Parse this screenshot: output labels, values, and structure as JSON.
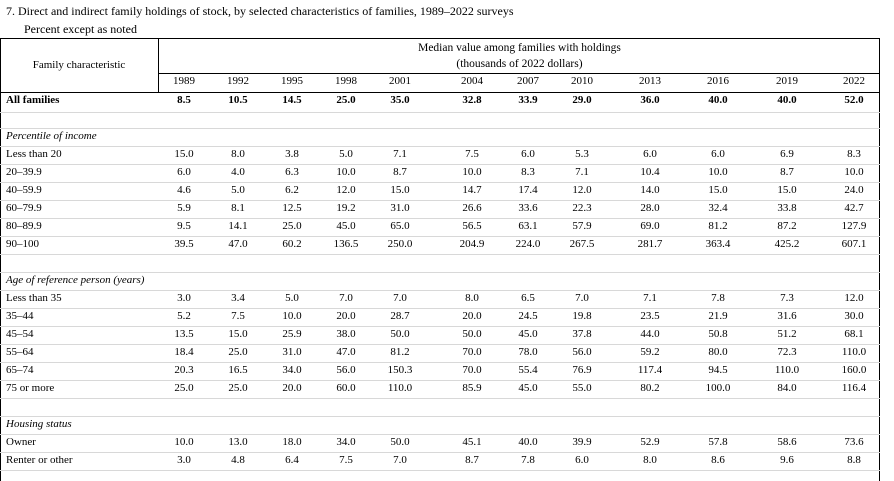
{
  "title": "7. Direct and indirect family holdings of stock, by selected characteristics of families, 1989–2022 surveys",
  "subtitle": "Percent except as noted",
  "row_header_label": "Family characteristic",
  "value_header": {
    "line1": "Median value among families with holdings",
    "line2": "(thousands of 2022 dollars)"
  },
  "years": [
    "1989",
    "1992",
    "1995",
    "1998",
    "2001",
    "2004",
    "2007",
    "2010",
    "2013",
    "2016",
    "2019",
    "2022"
  ],
  "rows": [
    {
      "type": "total",
      "label": "All families",
      "values": [
        "8.5",
        "10.5",
        "14.5",
        "25.0",
        "35.0",
        "32.8",
        "33.9",
        "29.0",
        "36.0",
        "40.0",
        "40.0",
        "52.0"
      ]
    },
    {
      "type": "section",
      "label": "Percentile of income"
    },
    {
      "type": "data",
      "label": "Less than 20",
      "values": [
        "15.0",
        "8.0",
        "3.8",
        "5.0",
        "7.1",
        "7.5",
        "6.0",
        "5.3",
        "6.0",
        "6.0",
        "6.9",
        "8.3"
      ]
    },
    {
      "type": "data",
      "label": "20–39.9",
      "values": [
        "6.0",
        "4.0",
        "6.3",
        "10.0",
        "8.7",
        "10.0",
        "8.3",
        "7.1",
        "10.4",
        "10.0",
        "8.7",
        "10.0"
      ]
    },
    {
      "type": "data",
      "label": "40–59.9",
      "values": [
        "4.6",
        "5.0",
        "6.2",
        "12.0",
        "15.0",
        "14.7",
        "17.4",
        "12.0",
        "14.0",
        "15.0",
        "15.0",
        "24.0"
      ]
    },
    {
      "type": "data",
      "label": "60–79.9",
      "values": [
        "5.9",
        "8.1",
        "12.5",
        "19.2",
        "31.0",
        "26.6",
        "33.6",
        "22.3",
        "28.0",
        "32.4",
        "33.8",
        "42.7"
      ]
    },
    {
      "type": "data",
      "label": "80–89.9",
      "values": [
        "9.5",
        "14.1",
        "25.0",
        "45.0",
        "65.0",
        "56.5",
        "63.1",
        "57.9",
        "69.0",
        "81.2",
        "87.2",
        "127.9"
      ]
    },
    {
      "type": "data",
      "label": "90–100",
      "values": [
        "39.5",
        "47.0",
        "60.2",
        "136.5",
        "250.0",
        "204.9",
        "224.0",
        "267.5",
        "281.7",
        "363.4",
        "425.2",
        "607.1"
      ]
    },
    {
      "type": "section",
      "label": "Age of reference person (years)"
    },
    {
      "type": "data",
      "label": "Less than 35",
      "values": [
        "3.0",
        "3.4",
        "5.0",
        "7.0",
        "7.0",
        "8.0",
        "6.5",
        "7.0",
        "7.1",
        "7.8",
        "7.3",
        "12.0"
      ]
    },
    {
      "type": "data",
      "label": "35–44",
      "values": [
        "5.2",
        "7.5",
        "10.0",
        "20.0",
        "28.7",
        "20.0",
        "24.5",
        "19.8",
        "23.5",
        "21.9",
        "31.6",
        "30.0"
      ]
    },
    {
      "type": "data",
      "label": "45–54",
      "values": [
        "13.5",
        "15.0",
        "25.9",
        "38.0",
        "50.0",
        "50.0",
        "45.0",
        "37.8",
        "44.0",
        "50.8",
        "51.2",
        "68.1"
      ]
    },
    {
      "type": "data",
      "label": "55–64",
      "values": [
        "18.4",
        "25.0",
        "31.0",
        "47.0",
        "81.2",
        "70.0",
        "78.0",
        "56.0",
        "59.2",
        "80.0",
        "72.3",
        "110.0"
      ]
    },
    {
      "type": "data",
      "label": "65–74",
      "values": [
        "20.3",
        "16.5",
        "34.0",
        "56.0",
        "150.3",
        "70.0",
        "55.4",
        "76.9",
        "117.4",
        "94.5",
        "110.0",
        "160.0"
      ]
    },
    {
      "type": "data",
      "label": "75 or more",
      "values": [
        "25.0",
        "25.0",
        "20.0",
        "60.0",
        "110.0",
        "85.9",
        "45.0",
        "55.0",
        "80.2",
        "100.0",
        "84.0",
        "116.4"
      ]
    },
    {
      "type": "section",
      "label": "Housing status"
    },
    {
      "type": "data",
      "label": "Owner",
      "values": [
        "10.0",
        "13.0",
        "18.0",
        "34.0",
        "50.0",
        "45.1",
        "40.0",
        "39.9",
        "52.9",
        "57.8",
        "58.6",
        "73.6"
      ]
    },
    {
      "type": "data",
      "label": "Renter or other",
      "values": [
        "3.0",
        "4.8",
        "6.4",
        "7.5",
        "7.0",
        "8.7",
        "7.8",
        "6.0",
        "8.0",
        "8.6",
        "9.6",
        "8.8"
      ]
    }
  ]
}
